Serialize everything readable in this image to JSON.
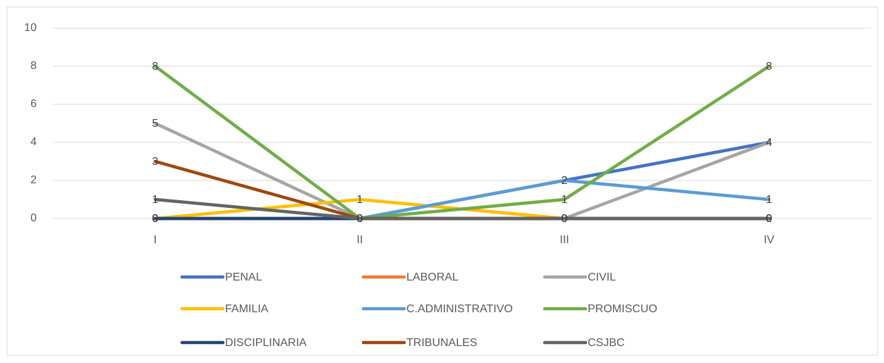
{
  "chart_data": {
    "type": "line",
    "categories": [
      "I",
      "II",
      "III",
      "IV"
    ],
    "series": [
      {
        "name": "PENAL",
        "color": "#4472c4",
        "values": [
          0,
          0,
          2,
          4
        ]
      },
      {
        "name": "LABORAL",
        "color": "#ed7d31",
        "values": [
          0,
          0,
          0,
          0
        ]
      },
      {
        "name": "CIVIL",
        "color": "#a5a5a5",
        "values": [
          5,
          0,
          0,
          4
        ]
      },
      {
        "name": "FAMILIA",
        "color": "#ffc000",
        "values": [
          0,
          1,
          0,
          0
        ]
      },
      {
        "name": "C.ADMINISTRATIVO",
        "color": "#5b9bd5",
        "values": [
          0,
          0,
          2,
          1
        ]
      },
      {
        "name": "PROMISCUO",
        "color": "#70ad47",
        "values": [
          8,
          0,
          1,
          8
        ]
      },
      {
        "name": "DISCIPLINARIA",
        "color": "#264478",
        "values": [
          0,
          0,
          0,
          0
        ]
      },
      {
        "name": "TRIBUNALES",
        "color": "#9e480e",
        "values": [
          3,
          0,
          0,
          0
        ]
      },
      {
        "name": "CSJBC",
        "color": "#636363",
        "values": [
          1,
          0,
          0,
          0
        ]
      }
    ],
    "ylim": [
      0,
      10
    ],
    "yticks": [
      0,
      2,
      4,
      6,
      8,
      10
    ],
    "grid": true,
    "legend": "bottom"
  }
}
